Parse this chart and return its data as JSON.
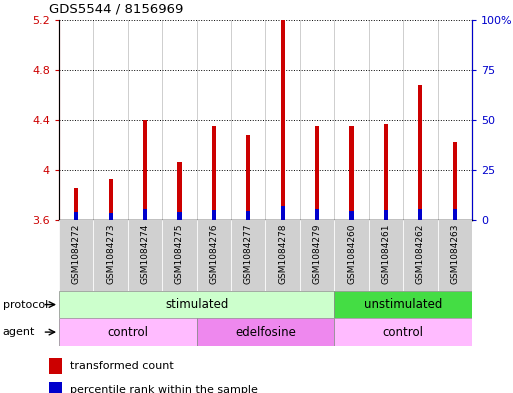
{
  "title": "GDS5544 / 8156969",
  "samples": [
    "GSM1084272",
    "GSM1084273",
    "GSM1084274",
    "GSM1084275",
    "GSM1084276",
    "GSM1084277",
    "GSM1084278",
    "GSM1084279",
    "GSM1084260",
    "GSM1084261",
    "GSM1084262",
    "GSM1084263"
  ],
  "transformed_count": [
    3.86,
    3.93,
    4.4,
    4.06,
    4.35,
    4.28,
    5.2,
    4.35,
    4.35,
    4.37,
    4.68,
    4.22
  ],
  "percentile_rank": [
    4.0,
    3.5,
    5.5,
    4.0,
    5.0,
    4.5,
    7.0,
    5.5,
    4.5,
    5.0,
    5.5,
    5.5
  ],
  "bar_base": 3.6,
  "ylim": [
    3.6,
    5.2
  ],
  "yticks": [
    3.6,
    4.0,
    4.4,
    4.8,
    5.2
  ],
  "ytick_labels_left": [
    "3.6",
    "4",
    "4.4",
    "4.8",
    "5.2"
  ],
  "right_ytick_labels": [
    "0",
    "25",
    "50",
    "75",
    "100%"
  ],
  "right_yticks": [
    0,
    25,
    50,
    75,
    100
  ],
  "red_color": "#cc0000",
  "blue_color": "#0000cc",
  "bar_width": 0.12,
  "protocol_row_color_stimulated": "#ccffcc",
  "protocol_row_color_unstimulated": "#44dd44",
  "agent_row_color_control": "#ffbbff",
  "agent_row_color_edelfosine": "#ee88ee",
  "tick_label_color_left": "#cc0000",
  "tick_label_color_right": "#0000cc",
  "xticklabel_bg": "#cccccc",
  "n_samples": 12,
  "protocol_split": 8,
  "agent_splits": [
    4,
    8
  ]
}
